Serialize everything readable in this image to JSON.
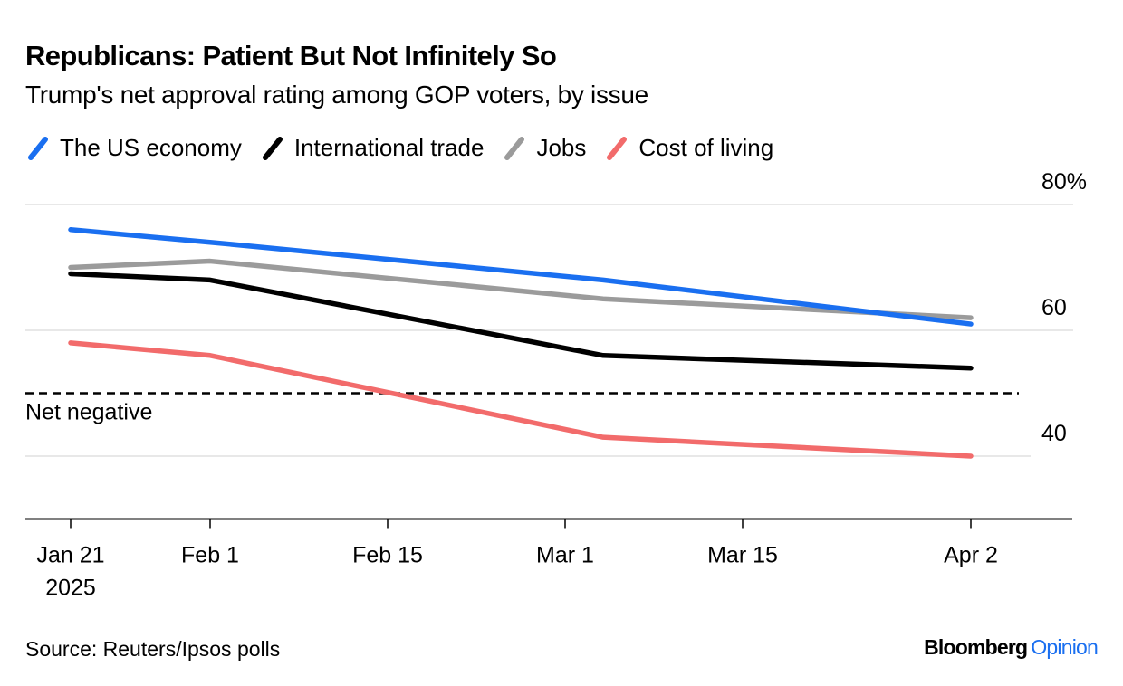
{
  "header": {
    "title": "Republicans: Patient But Not Infinitely So",
    "subtitle": "Trump's net approval rating among GOP voters, by issue"
  },
  "footer": {
    "source": "Source: Reuters/Ipsos polls",
    "brand_main": "Bloomberg",
    "brand_accent": "Opinion"
  },
  "chart_data": {
    "type": "line",
    "title": "Republicans: Patient But Not Infinitely So",
    "subtitle": "Trump's net approval rating among GOP voters, by issue",
    "xlabel": "",
    "ylabel": "",
    "x": [
      "2025-01-21",
      "2025-02-01",
      "2025-03-04",
      "2025-04-02"
    ],
    "x_day_offsets": [
      0,
      11,
      42,
      71
    ],
    "x_range_days": [
      -4,
      79
    ],
    "x_ticks": [
      {
        "day": 0,
        "label": "Jan 21",
        "sublabel": "2025"
      },
      {
        "day": 11,
        "label": "Feb 1",
        "sublabel": ""
      },
      {
        "day": 25,
        "label": "Feb 15",
        "sublabel": ""
      },
      {
        "day": 39,
        "label": "Mar 1",
        "sublabel": ""
      },
      {
        "day": 53,
        "label": "Mar 15",
        "sublabel": ""
      },
      {
        "day": 71,
        "label": "Apr 2",
        "sublabel": ""
      }
    ],
    "ylim": [
      30,
      82
    ],
    "y_ticks": [
      {
        "value": 80,
        "label": "80%"
      },
      {
        "value": 60,
        "label": "60"
      },
      {
        "value": 40,
        "label": "40"
      }
    ],
    "grid": true,
    "legend_position": "top-left",
    "series": [
      {
        "name": "The US economy",
        "color": "#1a6ff0",
        "values": [
          76,
          74,
          68,
          61
        ]
      },
      {
        "name": "International trade",
        "color": "#000000",
        "values": [
          69,
          68,
          56,
          54
        ]
      },
      {
        "name": "Jobs",
        "color": "#9b9b9b",
        "values": [
          70,
          71,
          65,
          62
        ]
      },
      {
        "name": "Cost of living",
        "color": "#f26b6b",
        "values": [
          58,
          56,
          43,
          40
        ]
      }
    ],
    "annotations": [
      {
        "type": "reference-line",
        "value": 50,
        "label": "Net negative",
        "style": "dashed"
      }
    ]
  }
}
